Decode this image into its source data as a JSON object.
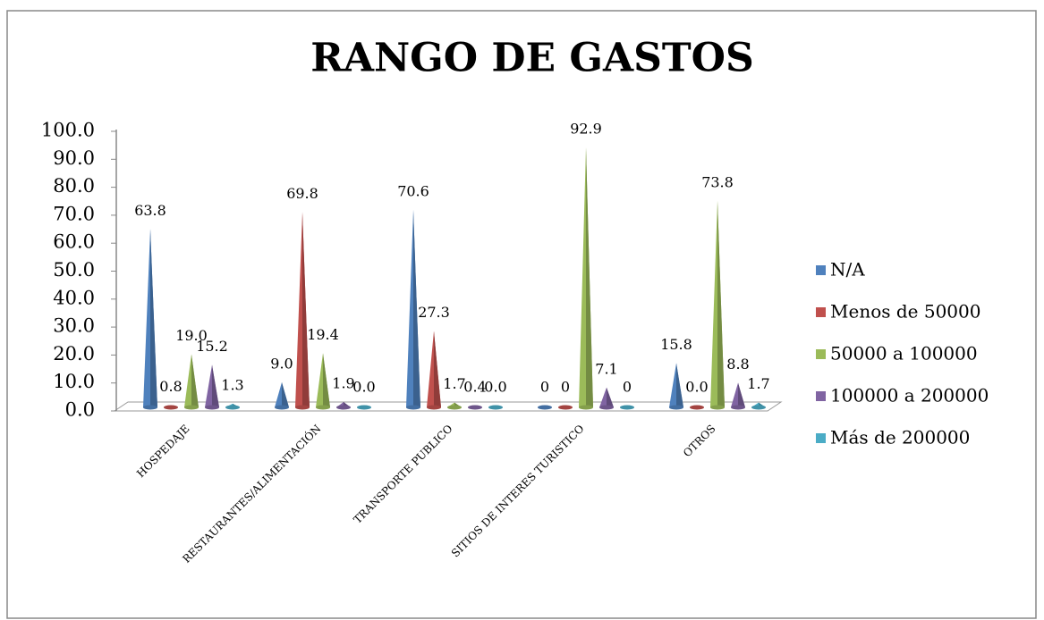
{
  "chart_data": {
    "type": "cone-bar",
    "title": "RANGO DE GASTOS",
    "categories": [
      "HOSPEDAJE",
      "RESTAURANTES/ALIMENTACIÓN",
      "TRANSPORTE PUBLICO",
      "SITIOS DE INTERES TURISTICO",
      "OTROS"
    ],
    "series": [
      {
        "name": "N/A",
        "color": "#4f81bd",
        "values": [
          63.8,
          9.0,
          70.6,
          0,
          15.8
        ],
        "value_labels": [
          "63.8",
          "9.0",
          "70.6",
          "0",
          "15.8"
        ]
      },
      {
        "name": "Menos de 50000",
        "color": "#c0504d",
        "values": [
          0.8,
          69.8,
          27.3,
          0,
          0.0
        ],
        "value_labels": [
          "0.8",
          "69.8",
          "27.3",
          "0",
          "0.0"
        ]
      },
      {
        "name": "50000 a 100000",
        "color": "#9bbb59",
        "values": [
          19.0,
          19.4,
          1.7,
          92.9,
          73.8
        ],
        "value_labels": [
          "19.0",
          "19.4",
          "1.7",
          "92.9",
          "73.8"
        ]
      },
      {
        "name": "100000 a 200000",
        "color": "#8064a2",
        "values": [
          15.2,
          1.9,
          0.4,
          7.1,
          8.8
        ],
        "value_labels": [
          "15.2",
          "1.9",
          "0.4",
          "7.1",
          "8.8"
        ]
      },
      {
        "name": "Más de 200000",
        "color": "#4bacc6",
        "values": [
          1.3,
          0.0,
          0.0,
          0,
          1.7
        ],
        "value_labels": [
          "1.3",
          "0.0",
          "0.0",
          "0",
          "1.7"
        ]
      }
    ],
    "ylim": [
      0,
      100
    ],
    "yticks": [
      {
        "value": 0,
        "label": "0.0"
      },
      {
        "value": 10,
        "label": "10.0"
      },
      {
        "value": 20,
        "label": "20.0"
      },
      {
        "value": 30,
        "label": "30.0"
      },
      {
        "value": 40,
        "label": "40.0"
      },
      {
        "value": 50,
        "label": "50.0"
      },
      {
        "value": 60,
        "label": "60.0"
      },
      {
        "value": 70,
        "label": "70.0"
      },
      {
        "value": 80,
        "label": "80.0"
      },
      {
        "value": 90,
        "label": "90.0"
      },
      {
        "value": 100,
        "label": "100.0"
      }
    ],
    "legend": "right"
  }
}
